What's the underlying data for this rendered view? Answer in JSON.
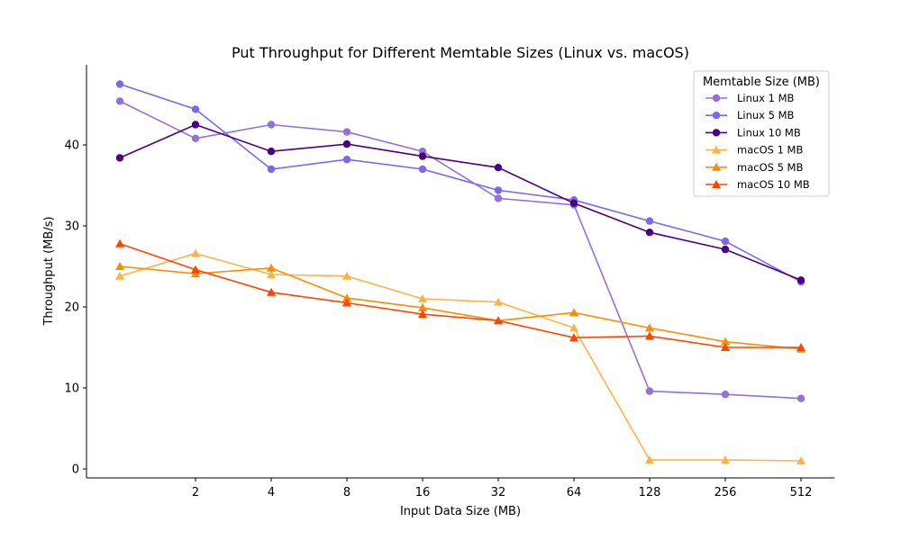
{
  "chart_data": {
    "type": "line",
    "title": "Put Throughput for Different Memtable Sizes (Linux vs. macOS)",
    "xlabel": "Input Data Size (MB)",
    "ylabel": "Throughput (MB/s)",
    "x": [
      1,
      2,
      4,
      8,
      16,
      32,
      64,
      128,
      256,
      512
    ],
    "x_scale": "log2",
    "xtick_labels": [
      "2",
      "4",
      "8",
      "16",
      "32",
      "64",
      "128",
      "256",
      "512"
    ],
    "xtick_values": [
      2,
      4,
      8,
      16,
      32,
      64,
      128,
      256,
      512
    ],
    "yticks": [
      0,
      10,
      20,
      30,
      40
    ],
    "ylim": [
      -1.2,
      50
    ],
    "grid": false,
    "legend": {
      "title": "Memtable Size (MB)",
      "placement": "top-right"
    },
    "series": [
      {
        "name": "Linux 1 MB",
        "color": "#9370DB",
        "marker": "circle",
        "values": [
          45.4,
          40.8,
          42.5,
          41.6,
          39.2,
          33.4,
          32.6,
          9.6,
          9.2,
          8.7
        ]
      },
      {
        "name": "Linux 5 MB",
        "color": "#7B68EE",
        "marker": "circle",
        "values": [
          47.5,
          44.4,
          37.0,
          38.2,
          37.0,
          34.4,
          33.2,
          30.6,
          28.1,
          23.1
        ]
      },
      {
        "name": "Linux 10 MB",
        "color": "#4B0082",
        "marker": "circle",
        "values": [
          38.4,
          42.5,
          39.2,
          40.1,
          38.6,
          37.2,
          32.8,
          29.2,
          27.1,
          23.3
        ]
      },
      {
        "name": "macOS 1 MB",
        "color": "#FFB347",
        "marker": "triangle",
        "values": [
          23.8,
          26.6,
          24.0,
          23.8,
          21.0,
          20.6,
          17.4,
          1.1,
          1.1,
          1.0
        ]
      },
      {
        "name": "macOS 5 MB",
        "color": "#FF8C00",
        "marker": "triangle",
        "values": [
          25.0,
          24.1,
          24.8,
          21.1,
          19.9,
          18.3,
          19.3,
          17.4,
          15.7,
          14.8
        ]
      },
      {
        "name": "macOS 10 MB",
        "color": "#FF4500",
        "marker": "triangle",
        "values": [
          27.8,
          24.6,
          21.8,
          20.5,
          19.1,
          18.3,
          16.2,
          16.4,
          15.0,
          15.0
        ]
      }
    ]
  }
}
